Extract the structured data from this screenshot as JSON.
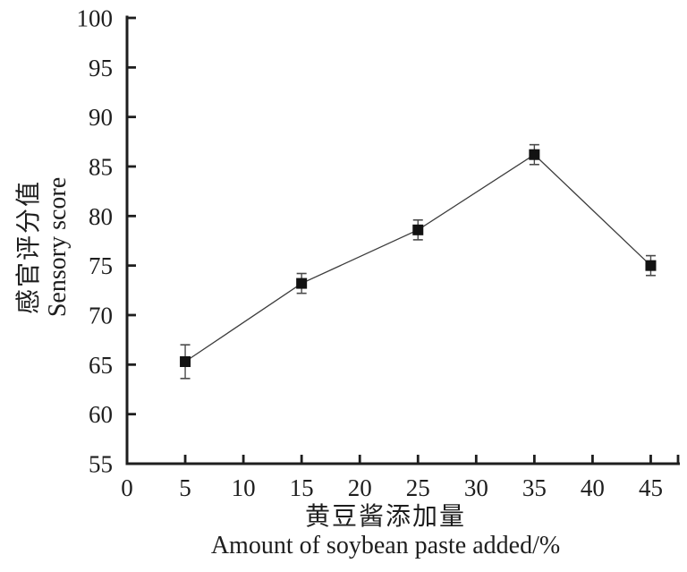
{
  "figure": {
    "background": "#ffffff"
  },
  "chart_data": {
    "type": "line",
    "title": "",
    "x": [
      5,
      15,
      25,
      35,
      45
    ],
    "series": [
      {
        "name": "sensory-score",
        "marker": "filled-square",
        "values": [
          65.3,
          73.2,
          78.6,
          86.2,
          75.0
        ],
        "error_bars": [
          1.7,
          1.0,
          1.0,
          1.0,
          1.0
        ]
      }
    ],
    "xlabel_zh": "黄豆酱添加量",
    "xlabel_en": "Amount of soybean paste added/%",
    "ylabel_zh": "感官评分值",
    "ylabel_en": "Sensory score",
    "xlim": [
      0,
      47.5
    ],
    "ylim": [
      55,
      100
    ],
    "x_ticks": [
      0,
      5,
      10,
      15,
      20,
      25,
      30,
      35,
      40,
      45
    ],
    "x_axis_end_tick": 47.5,
    "y_ticks": [
      55,
      60,
      65,
      70,
      75,
      80,
      85,
      90,
      95,
      100
    ],
    "grid": false,
    "legend": "none",
    "colors": {
      "background": "#ffffff",
      "axis": "#1e1e1e",
      "line": "#3c3c3c",
      "marker": "#121212",
      "error_bar": "#4a4a4a",
      "text": "#1e1e1e"
    }
  }
}
